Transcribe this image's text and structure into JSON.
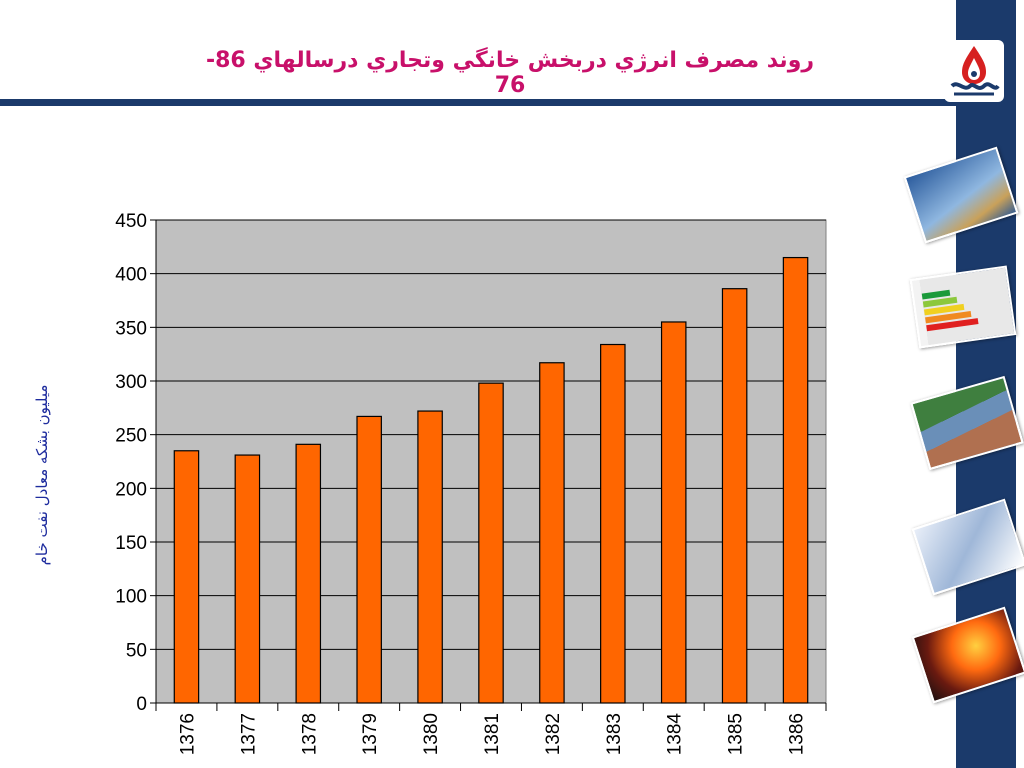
{
  "slide": {
    "title": "روند  مصرف انرژي دربخش خانگي وتجاري درسالهاي 86- 76",
    "accent_color": "#1b3a6b",
    "title_color": "#c8106a",
    "sidebar_images": [
      "wind-turbines-image",
      "energy-label-image",
      "solar-roof-image",
      "window-frame-image",
      "gas-burner-image"
    ],
    "logo": "oil-company-logo"
  },
  "chart_data": {
    "type": "bar",
    "title": "",
    "xlabel": "",
    "ylabel": "ميليون بشكه معادل نفت خام",
    "categories": [
      "1376",
      "1377",
      "1378",
      "1379",
      "1380",
      "1381",
      "1382",
      "1383",
      "1384",
      "1385",
      "1386"
    ],
    "values": [
      235,
      231,
      241,
      267,
      272,
      298,
      317,
      334,
      355,
      386,
      415
    ],
    "ylim": [
      0,
      450
    ],
    "yticks": [
      0,
      50,
      100,
      150,
      200,
      250,
      300,
      350,
      400,
      450
    ],
    "grid": true,
    "plot_background": "#c0c0c0",
    "bar_color": "#ff6600",
    "legend": "none"
  }
}
